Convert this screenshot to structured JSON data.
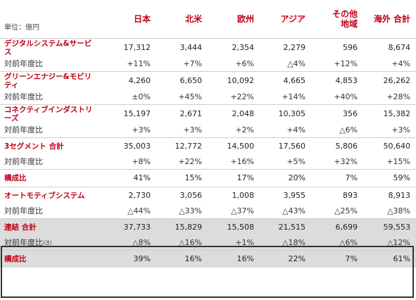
{
  "unit_label": "単位：億円",
  "headers": [
    "日本",
    "北米",
    "欧州",
    "アジア",
    "その他\n地域",
    "海外 合計"
  ],
  "rows": [
    {
      "label": "デジタルシステム&サービス",
      "values": [
        "17,312",
        "3,444",
        "2,354",
        "2,279",
        "596",
        "8,674"
      ]
    },
    {
      "label": "対前年度比",
      "values": [
        "+11%",
        "+7%",
        "+6%",
        "△4%",
        "+12%",
        "+4%"
      ]
    },
    {
      "label": "グリーンエナジー&モビリティ",
      "values": [
        "4,260",
        "6,650",
        "10,092",
        "4,665",
        "4,853",
        "26,262"
      ]
    },
    {
      "label": "対前年度比",
      "values": [
        "±0%",
        "+45%",
        "+22%",
        "+14%",
        "+40%",
        "+28%"
      ]
    },
    {
      "label": "コネクティブインダストリーズ",
      "values": [
        "15,197",
        "2,671",
        "2,048",
        "10,305",
        "356",
        "15,382"
      ]
    },
    {
      "label": "対前年度比",
      "values": [
        "+3%",
        "+3%",
        "+2%",
        "+4%",
        "△6%",
        "+3%"
      ]
    },
    {
      "label": "3セグメント 合計",
      "values": [
        "35,003",
        "12,772",
        "14,500",
        "17,560",
        "5,806",
        "50,640"
      ]
    },
    {
      "label": "対前年度比",
      "values": [
        "+8%",
        "+22%",
        "+16%",
        "+5%",
        "+32%",
        "+15%"
      ]
    },
    {
      "label": "構成比",
      "values": [
        "41%",
        "15%",
        "17%",
        "20%",
        "7%",
        "59%"
      ]
    },
    {
      "label": "オートモティブシステム",
      "values": [
        "2,730",
        "3,056",
        "1,008",
        "3,955",
        "893",
        "8,913"
      ]
    },
    {
      "label": "対前年度比",
      "values": [
        "△44%",
        "△33%",
        "△37%",
        "△43%",
        "△25%",
        "△38%"
      ]
    },
    {
      "label": "連結 合計",
      "values": [
        "37,733",
        "15,829",
        "15,508",
        "21,515",
        "6,699",
        "59,553"
      ]
    },
    {
      "label": "対前年度比",
      "note": "(注)",
      "values": [
        "△8%",
        "△16%",
        "+1%",
        "△18%",
        "△6%",
        "△12%"
      ]
    },
    {
      "label": "構成比",
      "values": [
        "39%",
        "16%",
        "16%",
        "22%",
        "7%",
        "61%"
      ]
    }
  ]
}
